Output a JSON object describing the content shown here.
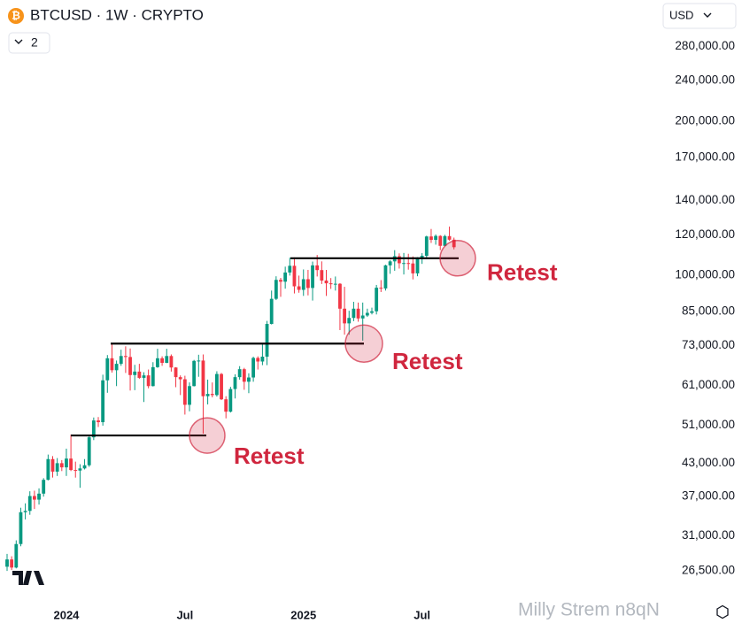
{
  "chart_data": {
    "type": "candlestick",
    "title": "BTCUSD · 1W · CRYPTO",
    "indicator_count": "2",
    "currency": "USD",
    "log_scale": true,
    "grid": false,
    "up_color": "#089981",
    "down_color": "#f23645",
    "categories": [
      null,
      null,
      null,
      null,
      null,
      null,
      null,
      null,
      null,
      null,
      null,
      null,
      null,
      "2024",
      null,
      null,
      null,
      null,
      null,
      null,
      null,
      null,
      null,
      null,
      null,
      null,
      null,
      null,
      null,
      null,
      null,
      null,
      null,
      null,
      null,
      null,
      null,
      null,
      null,
      "Jul",
      null,
      null,
      null,
      null,
      null,
      null,
      null,
      null,
      null,
      null,
      null,
      null,
      null,
      null,
      null,
      null,
      null,
      null,
      null,
      null,
      null,
      null,
      null,
      null,
      null,
      "2025",
      null,
      null,
      null,
      null,
      null,
      null,
      null,
      null,
      null,
      null,
      null,
      null,
      null,
      null,
      null,
      null,
      null,
      null,
      null,
      null,
      null,
      null,
      null,
      null,
      null,
      "Jul",
      null,
      null,
      null,
      null,
      null,
      null,
      null
    ],
    "open": [
      27000,
      27900,
      26900,
      29900,
      34500,
      34700,
      37100,
      36500,
      37500,
      39900,
      43800,
      41400,
      43000,
      42200,
      43900,
      41700,
      41600,
      42000,
      42600,
      48300,
      52100,
      51700,
      62400,
      68900,
      65300,
      67200,
      69600,
      69300,
      63900,
      64900,
      63100,
      63800,
      60800,
      66200,
      68900,
      67500,
      69600,
      66100,
      63300,
      62700,
      55900,
      60800,
      68100,
      68200,
      58100,
      58700,
      58400,
      64200,
      57300,
      54200,
      60000,
      63300,
      65600,
      62000,
      63200,
      69000,
      67900,
      69400,
      80400,
      90000,
      98000,
      97200,
      101300,
      104400,
      95200,
      93700,
      98300,
      94500,
      104600,
      102400,
      97700,
      96500,
      96100,
      96300,
      86100,
      80600,
      82600,
      86100,
      82400,
      83500,
      84500,
      85100,
      94600,
      94300,
      104600,
      106500,
      109000,
      105600,
      105700,
      105500,
      100900,
      108400,
      109200,
      119100,
      117300,
      119400,
      114200,
      119300,
      117400
    ],
    "high": [
      28600,
      28300,
      30400,
      35200,
      35900,
      37900,
      38000,
      38400,
      40200,
      44700,
      44400,
      44000,
      43600,
      45900,
      48900,
      43300,
      42800,
      43800,
      48600,
      52800,
      52900,
      64000,
      69900,
      73800,
      68200,
      71600,
      72700,
      72000,
      66900,
      67200,
      64700,
      65500,
      67700,
      71900,
      69500,
      71900,
      70100,
      66200,
      63800,
      63700,
      61800,
      68400,
      70000,
      70100,
      62600,
      61800,
      65000,
      64500,
      58100,
      60600,
      64100,
      66500,
      66000,
      64400,
      69400,
      69500,
      73600,
      81500,
      93400,
      99600,
      98900,
      104000,
      108300,
      108400,
      99900,
      102700,
      102500,
      106400,
      109600,
      106500,
      102500,
      98800,
      99500,
      96600,
      95000,
      85300,
      88800,
      88500,
      88500,
      86100,
      86500,
      95800,
      97900,
      104900,
      107100,
      112000,
      110400,
      110600,
      110200,
      108900,
      108500,
      110500,
      119500,
      123200,
      120200,
      119800,
      120000,
      124500,
      118500
    ],
    "low": [
      26500,
      26600,
      26800,
      29600,
      33400,
      34100,
      35000,
      35700,
      37000,
      39800,
      40300,
      40600,
      41500,
      40600,
      41500,
      40300,
      38500,
      41800,
      42300,
      47700,
      50600,
      50900,
      59000,
      64600,
      60800,
      66600,
      64500,
      59600,
      59700,
      62800,
      56600,
      60200,
      60700,
      66000,
      66600,
      67400,
      64900,
      60500,
      58400,
      53500,
      54300,
      60700,
      63400,
      49100,
      56000,
      57800,
      58000,
      57100,
      52600,
      54000,
      57500,
      62600,
      59800,
      58900,
      62000,
      65500,
      66800,
      66800,
      80200,
      89500,
      90800,
      94200,
      99900,
      92200,
      92500,
      91200,
      91400,
      89300,
      99500,
      96200,
      91200,
      94100,
      93400,
      78200,
      76600,
      76600,
      81400,
      81200,
      74600,
      83000,
      83900,
      83900,
      92800,
      93400,
      100700,
      102100,
      103100,
      100400,
      102600,
      98200,
      99600,
      105300,
      107500,
      115700,
      114800,
      112000,
      114000,
      116900,
      112400
    ],
    "close": [
      27900,
      26900,
      29900,
      34500,
      34700,
      37100,
      36500,
      37500,
      39900,
      43800,
      41400,
      43000,
      42200,
      43900,
      41700,
      41600,
      42000,
      42600,
      48300,
      52100,
      51700,
      62400,
      68900,
      65300,
      67200,
      69600,
      69300,
      63900,
      64900,
      63100,
      63800,
      60800,
      66200,
      68900,
      67500,
      69600,
      66100,
      63300,
      62700,
      55900,
      60800,
      68100,
      68200,
      58100,
      58700,
      58400,
      64200,
      57300,
      54200,
      60000,
      63300,
      65600,
      62000,
      63200,
      69000,
      67900,
      69400,
      80400,
      90000,
      98000,
      97200,
      101300,
      104400,
      95200,
      93700,
      98300,
      94500,
      104600,
      102400,
      97700,
      96500,
      96100,
      96300,
      86100,
      80600,
      82600,
      86100,
      82400,
      83500,
      84500,
      85100,
      94600,
      94300,
      104600,
      106500,
      109000,
      105600,
      105700,
      105500,
      100900,
      108400,
      109200,
      119100,
      117300,
      119400,
      114200,
      119300,
      117400,
      113500
    ],
    "ylim": [
      24000,
      294000
    ],
    "yticks": [
      {
        "value": 26500,
        "label": "26,500.00"
      },
      {
        "value": 31000,
        "label": "31,000.00"
      },
      {
        "value": 37000,
        "label": "37,000.00"
      },
      {
        "value": 43000,
        "label": "43,000.00"
      },
      {
        "value": 51000,
        "label": "51,000.00"
      },
      {
        "value": 61000,
        "label": "61,000.00"
      },
      {
        "value": 73000,
        "label": "73,000.00"
      },
      {
        "value": 85000,
        "label": "85,000.00"
      },
      {
        "value": 100000,
        "label": "100,000.00"
      },
      {
        "value": 120000,
        "label": "120,000.00"
      },
      {
        "value": 140000,
        "label": "140,000.00"
      },
      {
        "value": 170000,
        "label": "170,000.00"
      },
      {
        "value": 200000,
        "label": "200,000.00"
      },
      {
        "value": 240000,
        "label": "240,000.00"
      },
      {
        "value": 280000,
        "label": "280,000.00"
      }
    ],
    "annotations": [
      {
        "text": "Retest",
        "level": 48700,
        "color": "#d0263e"
      },
      {
        "text": "Retest",
        "level": 73600,
        "color": "#d0263e"
      },
      {
        "text": "Retest",
        "level": 108000,
        "color": "#d0263e"
      }
    ],
    "watermark": "Milly Strem n8qN"
  }
}
